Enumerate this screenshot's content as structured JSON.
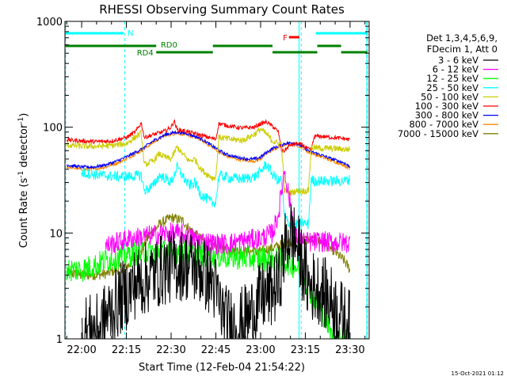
{
  "chart_data": {
    "type": "line",
    "title": "RHESSI Observing Summary Count Rates",
    "xlabel": "Start Time (12-Feb-04 21:54:22)",
    "ylabel_main": "Count Rate (s",
    "ylabel_sup1": "-1",
    "ylabel_mid": " detector",
    "ylabel_sup2": "-1",
    "ylabel_end": ")",
    "y_scale": "log",
    "ylim": [
      1,
      1000
    ],
    "xlim_minutes": [
      -5.6,
      96.4
    ],
    "x_ticks": [
      {
        "t": 0,
        "label": "22:00"
      },
      {
        "t": 15,
        "label": "22:15"
      },
      {
        "t": 30,
        "label": "22:30"
      },
      {
        "t": 45,
        "label": "22:45"
      },
      {
        "t": 60,
        "label": "23:00"
      },
      {
        "t": 75,
        "label": "23:15"
      },
      {
        "t": 90,
        "label": "23:30"
      }
    ],
    "y_ticks": [
      {
        "v": 1,
        "label": "1"
      },
      {
        "v": 10,
        "label": "10"
      },
      {
        "v": 100,
        "label": "100"
      },
      {
        "v": 1000,
        "label": "1000"
      }
    ],
    "legend": {
      "placement": "right",
      "header1": "Det 1,3,4,5,6,9,",
      "header2": "FDecim 1, Att 0"
    },
    "series": [
      {
        "name": "3 - 6 keV",
        "color": "#000000",
        "x": [
          0,
          6,
          8,
          11,
          13,
          16,
          18,
          21,
          24,
          28,
          32,
          36,
          40,
          44,
          48,
          52,
          56,
          60,
          63,
          66,
          68,
          70,
          72,
          76,
          80,
          84,
          88,
          90
        ],
        "y": [
          1.2,
          1.2,
          1.6,
          2.0,
          2.4,
          2.8,
          3.4,
          3.6,
          4.1,
          4.6,
          5.0,
          5.0,
          4.4,
          3.4,
          1.5,
          1.3,
          1.6,
          2.4,
          2.7,
          3.2,
          7,
          10,
          8,
          3.2,
          3.0,
          2.2,
          1.5,
          1.3
        ]
      },
      {
        "name": "6 - 12 keV",
        "color": "#ff00ff",
        "x": [
          8,
          12,
          16,
          20,
          24,
          28,
          30,
          33,
          36,
          40,
          44,
          48,
          52,
          56,
          60,
          64,
          66,
          68,
          70,
          72,
          74,
          76,
          80,
          84,
          88,
          90
        ],
        "y": [
          7.5,
          8.2,
          8.8,
          9.2,
          9.6,
          9.8,
          10,
          9.8,
          9.2,
          8.5,
          8.0,
          7.9,
          8.2,
          8.6,
          8.9,
          10,
          15,
          40,
          18,
          9,
          8.3,
          8.2,
          8.3,
          8.2,
          8.1,
          8.0
        ]
      },
      {
        "name": "12 - 25 keV",
        "color": "#00ff00",
        "x": [
          -5,
          0,
          5,
          8,
          12,
          16,
          20,
          24,
          28,
          32,
          36,
          40,
          44,
          48,
          52,
          56,
          60,
          64,
          68,
          72,
          74,
          76,
          80,
          82,
          84,
          88,
          90
        ],
        "y": [
          4.5,
          4.5,
          5.0,
          5.5,
          6.0,
          6.3,
          6.5,
          6.6,
          6.7,
          6.6,
          6.5,
          6.3,
          6.1,
          6.0,
          5.9,
          5.8,
          5.7,
          5.6,
          5.4,
          4.8,
          4.2,
          3.0,
          2.0,
          1.5,
          1.0,
          1.0,
          1.0
        ]
      },
      {
        "name": "25 - 50 keV",
        "color": "#00ffff",
        "x": [
          0,
          5,
          10,
          15,
          20,
          21,
          24,
          26,
          28,
          30,
          32,
          34,
          36,
          38,
          40,
          42,
          44,
          45,
          46,
          50,
          54,
          58,
          60,
          62,
          64,
          66,
          67,
          68,
          70,
          72,
          74,
          76,
          77,
          78,
          80,
          84,
          88,
          90
        ],
        "y": [
          37,
          35.5,
          34.5,
          34,
          35,
          25,
          28,
          35,
          33,
          30,
          42,
          34,
          28,
          30,
          23,
          21,
          19,
          20,
          35,
          33,
          32.5,
          34,
          38,
          45,
          36,
          31,
          32,
          14,
          12,
          12,
          12.5,
          12,
          32,
          31,
          31,
          31,
          31,
          32
        ]
      },
      {
        "name": "50 - 100 keV",
        "color": "#cccc00",
        "x": [
          -5,
          0,
          5,
          10,
          15,
          20,
          21,
          24,
          26,
          28,
          30,
          32,
          34,
          36,
          38,
          40,
          42,
          44,
          45,
          46,
          50,
          54,
          58,
          60,
          62,
          64,
          66,
          67,
          68,
          70,
          72,
          74,
          76,
          77,
          78,
          80,
          84,
          88,
          90
        ],
        "y": [
          68,
          66,
          66,
          67,
          70,
          88,
          44,
          48,
          56,
          52,
          50,
          65,
          55,
          48,
          50,
          40,
          36,
          33,
          34,
          80,
          77,
          75,
          86,
          96,
          86,
          74,
          70,
          70,
          25,
          24,
          25,
          25,
          25,
          65,
          64,
          63,
          63,
          62,
          62
        ]
      },
      {
        "name": "100 - 300 keV",
        "color": "#ff0000",
        "x": [
          -5,
          0,
          5,
          10,
          15,
          18,
          20,
          21,
          24,
          28,
          30,
          31,
          32,
          34,
          36,
          40,
          44,
          45,
          46,
          50,
          54,
          58,
          60,
          62,
          64,
          66,
          67,
          68,
          70,
          72,
          74,
          76,
          77,
          78,
          80,
          84,
          88,
          90
        ],
        "y": [
          76,
          74,
          73,
          74,
          80,
          90,
          110,
          80,
          85,
          92,
          100,
          115,
          95,
          93,
          90,
          84,
          78,
          77,
          108,
          102,
          98,
          100,
          108,
          112,
          102,
          90,
          60,
          60,
          68,
          70,
          68,
          62,
          60,
          82,
          82,
          80,
          78,
          76
        ]
      },
      {
        "name": "300 - 800 keV",
        "color": "#0000ff",
        "x": [
          -5,
          0,
          4,
          8,
          12,
          16,
          20,
          24,
          28,
          32,
          36,
          40,
          44,
          48,
          52,
          56,
          58,
          60,
          62,
          64,
          66,
          68,
          70,
          72,
          74,
          76,
          80,
          84,
          88,
          90
        ],
        "y": [
          44,
          42,
          42,
          44,
          48,
          54,
          62,
          74,
          85,
          90,
          86,
          78,
          66,
          56,
          52,
          50,
          50,
          52,
          58,
          63,
          66,
          70,
          71,
          70,
          66,
          60,
          55,
          50,
          46,
          42
        ]
      },
      {
        "name": "800 - 7000 keV",
        "color": "#ff8800",
        "x": [
          -5,
          0,
          4,
          8,
          12,
          16,
          20,
          24,
          28,
          32,
          36,
          40,
          44,
          48,
          52,
          56,
          58,
          60,
          62,
          64,
          66,
          68,
          70,
          72,
          74,
          76,
          80,
          84,
          88,
          90
        ],
        "y": [
          42,
          40,
          40,
          42,
          46,
          52,
          60,
          72,
          83,
          88,
          84,
          76,
          64,
          54,
          50,
          48,
          48,
          50,
          56,
          61,
          64,
          68,
          69,
          68,
          64,
          58,
          53,
          48,
          44,
          40
        ]
      },
      {
        "name": "7000 - 15000 keV",
        "color": "#808000",
        "x": [
          -5,
          0,
          4,
          8,
          12,
          16,
          20,
          22,
          26,
          28,
          30,
          32,
          34,
          36,
          40,
          44,
          48,
          52,
          56,
          60,
          62,
          64,
          66,
          68,
          70,
          72,
          74,
          76,
          78,
          80,
          84,
          88,
          90
        ],
        "y": [
          4.2,
          4.0,
          4.0,
          4.1,
          4.5,
          5.0,
          6.5,
          9.0,
          12,
          13,
          14,
          13.5,
          13,
          11,
          8.8,
          7.6,
          7.0,
          6.7,
          6.7,
          6.7,
          7.0,
          7.2,
          7.6,
          8.0,
          8.3,
          8.5,
          8.6,
          8.7,
          8.5,
          8.2,
          7.0,
          5.5,
          4.5
        ]
      }
    ],
    "annotations": [
      {
        "label": "N",
        "color": "#00ffff"
      },
      {
        "label": "RD0",
        "color": "#008000"
      },
      {
        "label": "RD4",
        "color": "#008000"
      },
      {
        "label": "F",
        "color": "#ff0000"
      }
    ],
    "eclipse_lines_minutes": [
      -5.4,
      14.5,
      73.6,
      95.8
    ],
    "saa_lines_minutes": [
      72.9,
      95.6
    ],
    "night_segments": [
      [
        -5.4,
        14.0
      ],
      [
        78.5,
        95.8
      ]
    ],
    "decimation_segments_upper": [
      [
        -5.4,
        25.0
      ],
      [
        44.0,
        64.0
      ],
      [
        79.0,
        87.0
      ]
    ],
    "decimation_segments_lower": [
      [
        25.0,
        44.0
      ],
      [
        64.0,
        79.0
      ],
      [
        87.0,
        95.8
      ]
    ],
    "flare_segment": [
      69.5,
      73.0
    ],
    "timestamp": "15-Oct-2021 01:12"
  }
}
